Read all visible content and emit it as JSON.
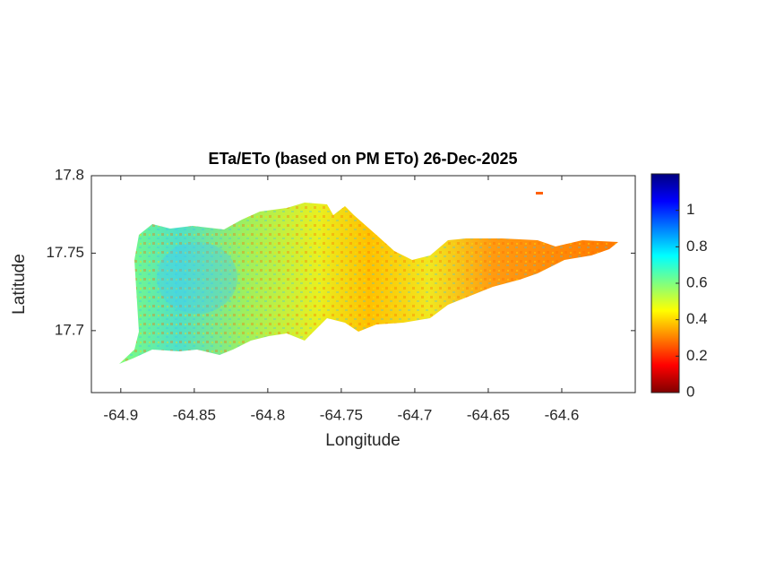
{
  "chart_data": {
    "type": "map",
    "title": "ETa/ETo (based on PM ETo) 26-Dec-2025",
    "xlabel": "Longitude",
    "ylabel": "Latitude",
    "xlim": [
      -64.92,
      -64.55
    ],
    "xticks": [
      -64.9,
      -64.85,
      -64.8,
      -64.75,
      -64.7,
      -64.65,
      -64.6
    ],
    "ylim": [
      17.66,
      17.8
    ],
    "yticks": [
      17.7,
      17.75,
      17.8
    ],
    "colormap": "jet",
    "clim": [
      0,
      1.2
    ],
    "cticks": [
      0,
      0.2,
      0.4,
      0.6,
      0.8,
      1
    ]
  }
}
